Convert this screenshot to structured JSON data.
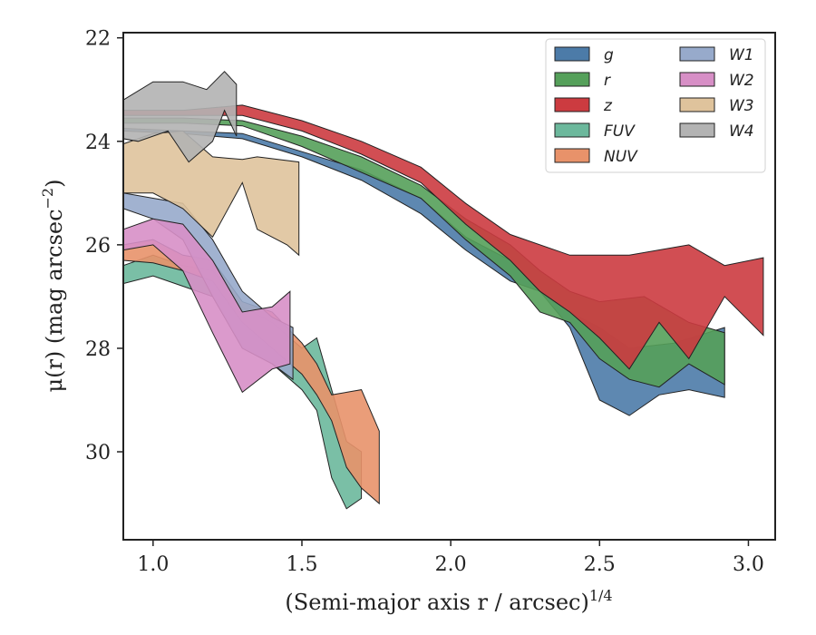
{
  "chart_data": {
    "type": "area",
    "xlabel": "(Semi-major axis r / arcsec)",
    "xlabel_exponent": "1/4",
    "ylabel": "μ(r) (mag arcsec",
    "ylabel_exponent": "−2",
    "ylabel_close": ")",
    "xlim": [
      0.9,
      3.09
    ],
    "ylim": [
      31.7,
      21.9
    ],
    "y_inverted": true,
    "grid": false,
    "legend_position": "top-right",
    "x_ticks": [
      {
        "value": 1.0,
        "label": "1.0"
      },
      {
        "value": 1.5,
        "label": "1.5"
      },
      {
        "value": 2.0,
        "label": "2.0"
      },
      {
        "value": 2.5,
        "label": "2.5"
      },
      {
        "value": 3.0,
        "label": "3.0"
      }
    ],
    "y_ticks": [
      {
        "value": 22,
        "label": "22"
      },
      {
        "value": 24,
        "label": "24"
      },
      {
        "value": 26,
        "label": "26"
      },
      {
        "value": 28,
        "label": "28"
      },
      {
        "value": 30,
        "label": "30"
      }
    ],
    "series": [
      {
        "name": "g",
        "color": "#4c7ba8",
        "upper": [
          [
            0.9,
            23.75
          ],
          [
            1.1,
            23.8
          ],
          [
            1.3,
            23.85
          ],
          [
            1.5,
            24.2
          ],
          [
            1.7,
            24.55
          ],
          [
            1.9,
            25.1
          ],
          [
            2.05,
            25.85
          ],
          [
            2.2,
            26.3
          ],
          [
            2.3,
            26.9
          ],
          [
            2.4,
            27.3
          ],
          [
            2.5,
            27.6
          ],
          [
            2.6,
            28.0
          ],
          [
            2.75,
            27.9
          ],
          [
            2.92,
            27.6
          ]
        ],
        "lower": [
          [
            2.92,
            28.95
          ],
          [
            2.8,
            28.8
          ],
          [
            2.7,
            28.9
          ],
          [
            2.6,
            29.3
          ],
          [
            2.5,
            29.0
          ],
          [
            2.4,
            27.6
          ],
          [
            2.3,
            26.9
          ],
          [
            2.2,
            26.7
          ],
          [
            2.05,
            26.1
          ],
          [
            1.9,
            25.4
          ],
          [
            1.7,
            24.75
          ],
          [
            1.5,
            24.3
          ],
          [
            1.3,
            23.95
          ],
          [
            1.1,
            23.85
          ],
          [
            0.9,
            23.8
          ]
        ]
      },
      {
        "name": "r",
        "color": "#55a05a",
        "upper": [
          [
            0.9,
            23.55
          ],
          [
            1.1,
            23.55
          ],
          [
            1.3,
            23.6
          ],
          [
            1.5,
            23.9
          ],
          [
            1.7,
            24.3
          ],
          [
            1.9,
            24.85
          ],
          [
            2.05,
            25.5
          ],
          [
            2.2,
            26.0
          ],
          [
            2.3,
            26.5
          ],
          [
            2.4,
            26.9
          ],
          [
            2.5,
            27.1
          ],
          [
            2.65,
            27.0
          ],
          [
            2.8,
            27.5
          ],
          [
            2.92,
            27.7
          ]
        ],
        "lower": [
          [
            2.92,
            28.7
          ],
          [
            2.8,
            28.3
          ],
          [
            2.7,
            28.75
          ],
          [
            2.6,
            28.6
          ],
          [
            2.5,
            28.2
          ],
          [
            2.4,
            27.5
          ],
          [
            2.3,
            27.3
          ],
          [
            2.2,
            26.6
          ],
          [
            2.05,
            25.9
          ],
          [
            1.9,
            25.1
          ],
          [
            1.7,
            24.6
          ],
          [
            1.5,
            24.1
          ],
          [
            1.3,
            23.7
          ],
          [
            1.1,
            23.65
          ],
          [
            0.9,
            23.65
          ]
        ]
      },
      {
        "name": "z",
        "color": "#cc3b40",
        "upper": [
          [
            0.9,
            23.4
          ],
          [
            1.1,
            23.4
          ],
          [
            1.3,
            23.3
          ],
          [
            1.5,
            23.6
          ],
          [
            1.7,
            24.0
          ],
          [
            1.9,
            24.5
          ],
          [
            2.05,
            25.2
          ],
          [
            2.2,
            25.8
          ],
          [
            2.4,
            26.2
          ],
          [
            2.6,
            26.2
          ],
          [
            2.8,
            26.0
          ],
          [
            2.92,
            26.4
          ],
          [
            3.05,
            26.25
          ]
        ],
        "lower": [
          [
            3.05,
            27.75
          ],
          [
            2.92,
            27.0
          ],
          [
            2.8,
            28.2
          ],
          [
            2.7,
            27.5
          ],
          [
            2.6,
            28.4
          ],
          [
            2.5,
            27.8
          ],
          [
            2.4,
            27.3
          ],
          [
            2.3,
            26.9
          ],
          [
            2.2,
            26.3
          ],
          [
            2.05,
            25.6
          ],
          [
            1.9,
            24.8
          ],
          [
            1.7,
            24.25
          ],
          [
            1.5,
            23.8
          ],
          [
            1.3,
            23.5
          ],
          [
            1.1,
            23.5
          ],
          [
            0.9,
            23.5
          ]
        ]
      },
      {
        "name": "FUV",
        "color": "#6cb89c",
        "upper": [
          [
            0.9,
            26.4
          ],
          [
            1.0,
            26.2
          ],
          [
            1.1,
            26.4
          ],
          [
            1.2,
            26.5
          ],
          [
            1.3,
            27.2
          ],
          [
            1.4,
            27.5
          ],
          [
            1.5,
            28.0
          ],
          [
            1.55,
            27.8
          ],
          [
            1.6,
            28.8
          ],
          [
            1.65,
            29.8
          ],
          [
            1.7,
            30.0
          ]
        ],
        "lower": [
          [
            1.7,
            30.9
          ],
          [
            1.65,
            31.1
          ],
          [
            1.6,
            30.5
          ],
          [
            1.55,
            29.2
          ],
          [
            1.5,
            28.8
          ],
          [
            1.4,
            28.3
          ],
          [
            1.3,
            28.0
          ],
          [
            1.2,
            27.0
          ],
          [
            1.1,
            26.8
          ],
          [
            1.0,
            26.6
          ],
          [
            0.9,
            26.75
          ]
        ]
      },
      {
        "name": "NUV",
        "color": "#e8926a",
        "upper": [
          [
            0.9,
            26.0
          ],
          [
            1.0,
            25.9
          ],
          [
            1.1,
            26.2
          ],
          [
            1.2,
            26.3
          ],
          [
            1.3,
            27.1
          ],
          [
            1.4,
            27.3
          ],
          [
            1.5,
            27.9
          ],
          [
            1.55,
            28.3
          ],
          [
            1.6,
            28.9
          ],
          [
            1.7,
            28.8
          ],
          [
            1.76,
            29.6
          ]
        ],
        "lower": [
          [
            1.76,
            31.0
          ],
          [
            1.7,
            30.7
          ],
          [
            1.65,
            30.3
          ],
          [
            1.6,
            29.4
          ],
          [
            1.55,
            28.9
          ],
          [
            1.5,
            28.5
          ],
          [
            1.4,
            28.0
          ],
          [
            1.3,
            27.5
          ],
          [
            1.2,
            26.7
          ],
          [
            1.1,
            26.5
          ],
          [
            1.0,
            26.35
          ],
          [
            0.9,
            26.3
          ]
        ]
      },
      {
        "name": "W1",
        "color": "#97aacb",
        "upper": [
          [
            0.9,
            25.0
          ],
          [
            1.0,
            25.1
          ],
          [
            1.1,
            25.2
          ],
          [
            1.2,
            25.9
          ],
          [
            1.3,
            26.9
          ],
          [
            1.4,
            27.4
          ],
          [
            1.47,
            27.6
          ]
        ],
        "lower": [
          [
            1.47,
            28.6
          ],
          [
            1.4,
            28.3
          ],
          [
            1.3,
            28.0
          ],
          [
            1.2,
            27.0
          ],
          [
            1.1,
            25.9
          ],
          [
            1.0,
            25.5
          ],
          [
            0.9,
            25.3
          ]
        ]
      },
      {
        "name": "W2",
        "color": "#d78fc6",
        "upper": [
          [
            0.9,
            25.7
          ],
          [
            1.0,
            25.5
          ],
          [
            1.1,
            25.6
          ],
          [
            1.2,
            26.3
          ],
          [
            1.3,
            27.3
          ],
          [
            1.4,
            27.2
          ],
          [
            1.46,
            26.9
          ]
        ],
        "lower": [
          [
            1.46,
            28.3
          ],
          [
            1.4,
            28.4
          ],
          [
            1.3,
            28.85
          ],
          [
            1.2,
            27.7
          ],
          [
            1.1,
            26.5
          ],
          [
            1.0,
            26.0
          ],
          [
            0.9,
            26.1
          ]
        ]
      },
      {
        "name": "W3",
        "color": "#dfc39c",
        "upper": [
          [
            0.9,
            24.05
          ],
          [
            1.0,
            23.85
          ],
          [
            1.1,
            23.8
          ],
          [
            1.2,
            24.3
          ],
          [
            1.3,
            24.35
          ],
          [
            1.35,
            24.3
          ],
          [
            1.49,
            24.4
          ]
        ],
        "lower": [
          [
            1.49,
            26.2
          ],
          [
            1.45,
            26.0
          ],
          [
            1.35,
            25.7
          ],
          [
            1.3,
            24.8
          ],
          [
            1.2,
            25.85
          ],
          [
            1.1,
            25.3
          ],
          [
            1.0,
            25.0
          ],
          [
            0.9,
            25.0
          ]
        ]
      },
      {
        "name": "W4",
        "color": "#b3b3b3",
        "upper": [
          [
            0.9,
            23.2
          ],
          [
            1.0,
            22.85
          ],
          [
            1.1,
            22.85
          ],
          [
            1.18,
            23.0
          ],
          [
            1.24,
            22.65
          ],
          [
            1.28,
            22.9
          ]
        ],
        "lower": [
          [
            1.28,
            23.9
          ],
          [
            1.24,
            23.4
          ],
          [
            1.2,
            24.0
          ],
          [
            1.12,
            24.4
          ],
          [
            1.05,
            23.8
          ],
          [
            0.95,
            24.0
          ],
          [
            0.9,
            23.95
          ]
        ]
      }
    ]
  }
}
